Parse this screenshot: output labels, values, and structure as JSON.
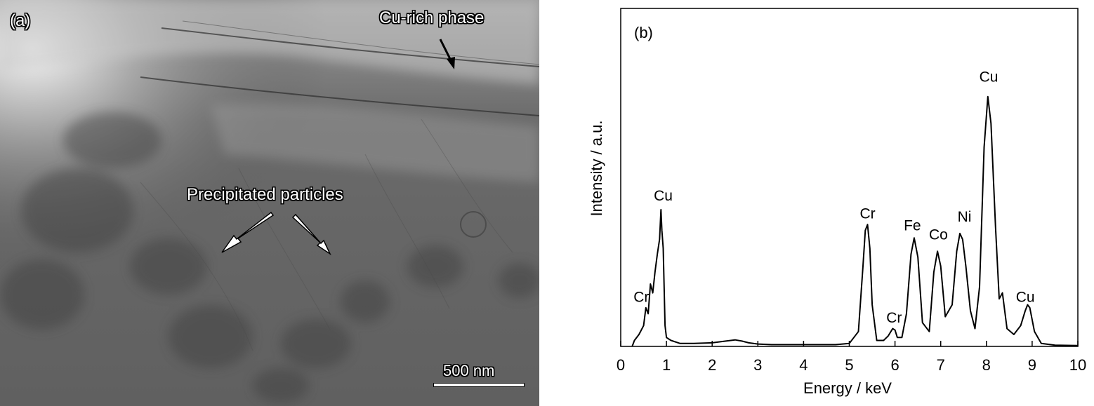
{
  "panel_a": {
    "label": "(a)",
    "annotation_top": "Cu-rich phase",
    "annotation_mid": "Precipitated particles",
    "scale_bar_label": "500 nm"
  },
  "panel_b": {
    "label": "(b)"
  },
  "chart_data": {
    "type": "line",
    "title": "",
    "xlabel": "Energy / keV",
    "ylabel": "Intensity / a.u.",
    "xlim": [
      0,
      10
    ],
    "ylim": [
      0,
      1
    ],
    "xticks": [
      "0",
      "1",
      "2",
      "3",
      "4",
      "5",
      "6",
      "7",
      "8",
      "9",
      "10"
    ],
    "grid": false,
    "series": [
      {
        "x": [
          0.25,
          0.3,
          0.4,
          0.5,
          0.55,
          0.6,
          0.65,
          0.7,
          0.75,
          0.8,
          0.85,
          0.88,
          0.9,
          0.93,
          0.97,
          1.0,
          1.1,
          1.3,
          1.6,
          2.0,
          2.3,
          2.5,
          2.65,
          2.8,
          3.0,
          3.3,
          3.7,
          4.2,
          4.7,
          5.0,
          5.2,
          5.3,
          5.35,
          5.4,
          5.45,
          5.5,
          5.6,
          5.75,
          5.85,
          5.95,
          6.0,
          6.05,
          6.15,
          6.25,
          6.35,
          6.42,
          6.5,
          6.6,
          6.75,
          6.85,
          6.93,
          7.0,
          7.1,
          7.25,
          7.35,
          7.42,
          7.48,
          7.55,
          7.65,
          7.75,
          7.85,
          7.95,
          8.03,
          8.1,
          8.2,
          8.28,
          8.35,
          8.45,
          8.6,
          8.75,
          8.85,
          8.9,
          8.95,
          9.05,
          9.2,
          9.5,
          10.0
        ],
        "y": [
          0.0,
          0.02,
          0.04,
          0.07,
          0.13,
          0.11,
          0.21,
          0.18,
          0.25,
          0.31,
          0.36,
          0.46,
          0.39,
          0.33,
          0.07,
          0.03,
          0.02,
          0.01,
          0.01,
          0.012,
          0.018,
          0.022,
          0.018,
          0.012,
          0.008,
          0.006,
          0.006,
          0.006,
          0.006,
          0.01,
          0.05,
          0.27,
          0.39,
          0.41,
          0.33,
          0.14,
          0.02,
          0.02,
          0.035,
          0.06,
          0.055,
          0.03,
          0.03,
          0.11,
          0.31,
          0.365,
          0.3,
          0.08,
          0.05,
          0.25,
          0.32,
          0.27,
          0.1,
          0.14,
          0.32,
          0.38,
          0.36,
          0.27,
          0.12,
          0.06,
          0.2,
          0.67,
          0.84,
          0.75,
          0.4,
          0.16,
          0.18,
          0.06,
          0.04,
          0.07,
          0.12,
          0.14,
          0.13,
          0.05,
          0.01,
          0.004,
          0.003
        ]
      }
    ],
    "annotations": [
      {
        "text": "Cu",
        "x": 0.93,
        "y": 0.49
      },
      {
        "text": "Cr",
        "x": 0.45,
        "y": 0.15
      },
      {
        "text": "Cr",
        "x": 5.4,
        "y": 0.43
      },
      {
        "text": "Cr",
        "x": 5.98,
        "y": 0.08
      },
      {
        "text": "Fe",
        "x": 6.38,
        "y": 0.39
      },
      {
        "text": "Co",
        "x": 6.95,
        "y": 0.36
      },
      {
        "text": "Ni",
        "x": 7.52,
        "y": 0.42
      },
      {
        "text": "Cu",
        "x": 8.05,
        "y": 0.89
      },
      {
        "text": "Cu",
        "x": 8.85,
        "y": 0.15
      }
    ]
  }
}
